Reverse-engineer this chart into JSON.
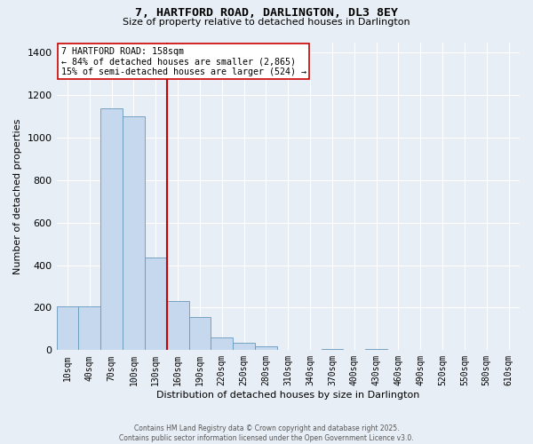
{
  "title_line1": "7, HARTFORD ROAD, DARLINGTON, DL3 8EY",
  "title_line2": "Size of property relative to detached houses in Darlington",
  "xlabel": "Distribution of detached houses by size in Darlington",
  "ylabel": "Number of detached properties",
  "bar_color": "#c5d8ed",
  "bar_edge_color": "#6699bb",
  "background_color": "#e8eef5",
  "grid_color": "#ffffff",
  "categories": [
    "10sqm",
    "40sqm",
    "70sqm",
    "100sqm",
    "130sqm",
    "160sqm",
    "190sqm",
    "220sqm",
    "250sqm",
    "280sqm",
    "310sqm",
    "340sqm",
    "370sqm",
    "400sqm",
    "430sqm",
    "460sqm",
    "490sqm",
    "520sqm",
    "550sqm",
    "580sqm",
    "610sqm"
  ],
  "values": [
    205,
    205,
    1140,
    1100,
    435,
    230,
    155,
    60,
    35,
    20,
    0,
    0,
    5,
    0,
    5,
    0,
    0,
    0,
    0,
    0,
    0
  ],
  "property_label": "7 HARTFORD ROAD: 158sqm",
  "annotation_line1": "← 84% of detached houses are smaller (2,865)",
  "annotation_line2": "15% of semi-detached houses are larger (524) →",
  "red_line_color": "#cc0000",
  "annotation_box_facecolor": "#ffffff",
  "annotation_box_edgecolor": "#cc0000",
  "ylim": [
    0,
    1450
  ],
  "yticks": [
    0,
    200,
    400,
    600,
    800,
    1000,
    1200,
    1400
  ],
  "footer_line1": "Contains HM Land Registry data © Crown copyright and database right 2025.",
  "footer_line2": "Contains public sector information licensed under the Open Government Licence v3.0.",
  "red_line_x": 4.5
}
